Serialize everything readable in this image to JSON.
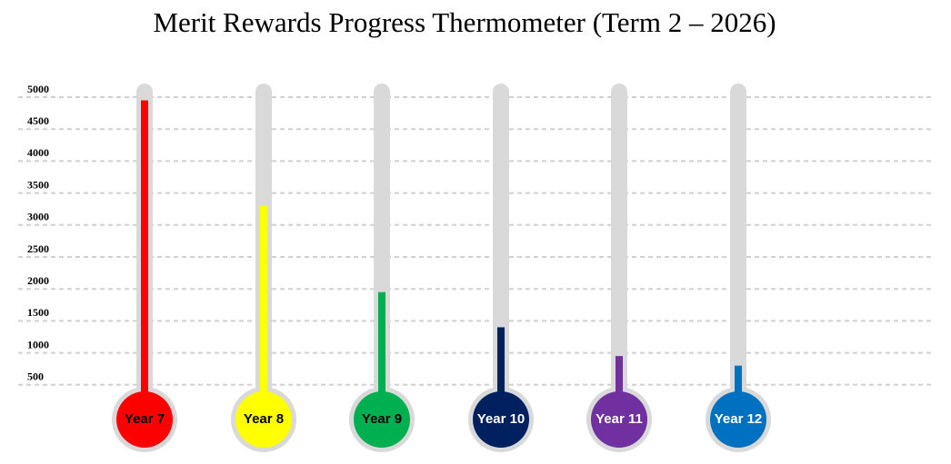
{
  "chart_data": {
    "type": "thermometer",
    "title": "Merit Rewards Progress Thermometer (Term 2 – 2026)",
    "categories": [
      "Year 7",
      "Year 8",
      "Year 9",
      "Year 10",
      "Year 11",
      "Year 12"
    ],
    "values": [
      4950,
      3300,
      1950,
      1400,
      950,
      800
    ],
    "colors": [
      "#ff0000",
      "#ffff00",
      "#00b050",
      "#002060",
      "#7030a0",
      "#0070c0"
    ],
    "label_colors": [
      "#000000",
      "#000000",
      "#000000",
      "#ffffff",
      "#ffffff",
      "#ffffff"
    ],
    "ylim": [
      0,
      5000
    ],
    "yticks": [
      500,
      1000,
      1500,
      2000,
      2500,
      3000,
      3500,
      4000,
      4500,
      5000
    ],
    "grid": true
  }
}
